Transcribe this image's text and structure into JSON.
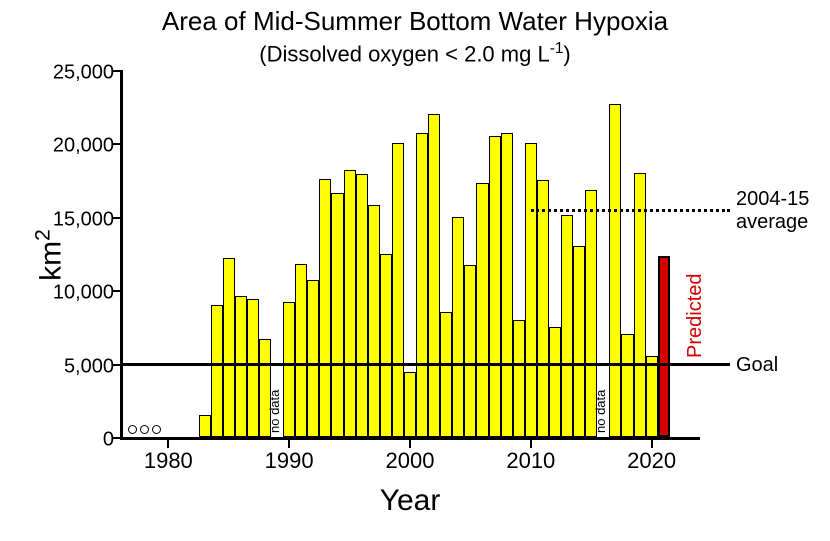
{
  "chart": {
    "type": "bar",
    "title": "Area of Mid-Summer Bottom Water Hypoxia",
    "subtitle_prefix": "(Dissolved oxygen < 2.0 mg L",
    "subtitle_exp": "-1",
    "subtitle_suffix": ")",
    "xlabel": "Year",
    "ylabel_prefix": "km",
    "ylabel_exp": "2",
    "title_fontsize": 26,
    "subtitle_fontsize": 22,
    "axis_label_fontsize": 30,
    "tick_fontsize_x": 22,
    "tick_fontsize_y": 20,
    "background_color": "#ffffff",
    "axis_color": "#000000",
    "bar_color": "#ffff00",
    "bar_border_color": "#000000",
    "predicted_color": "#d40000",
    "xlim": [
      1976,
      2024
    ],
    "ylim": [
      0,
      25000
    ],
    "yticks": [
      0,
      5000,
      10000,
      15000,
      20000,
      25000
    ],
    "ytick_labels": [
      "0",
      "5,000",
      "10,000",
      "15,000",
      "20,000",
      "25,000"
    ],
    "xticks": [
      1980,
      1990,
      2000,
      2010,
      2020
    ],
    "xtick_labels": [
      "1980",
      "1990",
      "2000",
      "2010",
      "2020"
    ],
    "bar_width_years": 1.0,
    "goal": {
      "value": 5000,
      "label": "Goal",
      "x_start": 1976,
      "x_end": 2024
    },
    "average": {
      "value": 15400,
      "label_line1": "2004-15",
      "label_line2": "average",
      "x_start": 2010,
      "x_end": 2024
    },
    "predicted_label": "Predicted",
    "no_data_label": "no data",
    "no_data_years": [
      1989,
      2016
    ],
    "early_circle_years": [
      1977,
      1978,
      1979
    ],
    "early_circle_value": 500,
    "bars": [
      {
        "year": 1983,
        "value": 1500
      },
      {
        "year": 1984,
        "value": 9000
      },
      {
        "year": 1985,
        "value": 12200
      },
      {
        "year": 1986,
        "value": 9600
      },
      {
        "year": 1987,
        "value": 9400
      },
      {
        "year": 1988,
        "value": 6700
      },
      {
        "year": 1990,
        "value": 9200
      },
      {
        "year": 1991,
        "value": 11800
      },
      {
        "year": 1992,
        "value": 10700
      },
      {
        "year": 1993,
        "value": 17600
      },
      {
        "year": 1994,
        "value": 16600
      },
      {
        "year": 1995,
        "value": 18200
      },
      {
        "year": 1996,
        "value": 17900
      },
      {
        "year": 1997,
        "value": 15800
      },
      {
        "year": 1998,
        "value": 12500
      },
      {
        "year": 1999,
        "value": 20000
      },
      {
        "year": 2000,
        "value": 4400
      },
      {
        "year": 2001,
        "value": 20700
      },
      {
        "year": 2002,
        "value": 22000
      },
      {
        "year": 2003,
        "value": 8500
      },
      {
        "year": 2004,
        "value": 15000
      },
      {
        "year": 2005,
        "value": 11700
      },
      {
        "year": 2006,
        "value": 17300
      },
      {
        "year": 2007,
        "value": 20500
      },
      {
        "year": 2008,
        "value": 20700
      },
      {
        "year": 2009,
        "value": 8000
      },
      {
        "year": 2010,
        "value": 20000
      },
      {
        "year": 2011,
        "value": 17500
      },
      {
        "year": 2012,
        "value": 7500
      },
      {
        "year": 2013,
        "value": 15100
      },
      {
        "year": 2014,
        "value": 13000
      },
      {
        "year": 2015,
        "value": 16800
      },
      {
        "year": 2017,
        "value": 22700
      },
      {
        "year": 2018,
        "value": 7000
      },
      {
        "year": 2019,
        "value": 18000
      },
      {
        "year": 2020,
        "value": 5500
      },
      {
        "year": 2021,
        "value": 12300,
        "predicted": true
      }
    ]
  }
}
